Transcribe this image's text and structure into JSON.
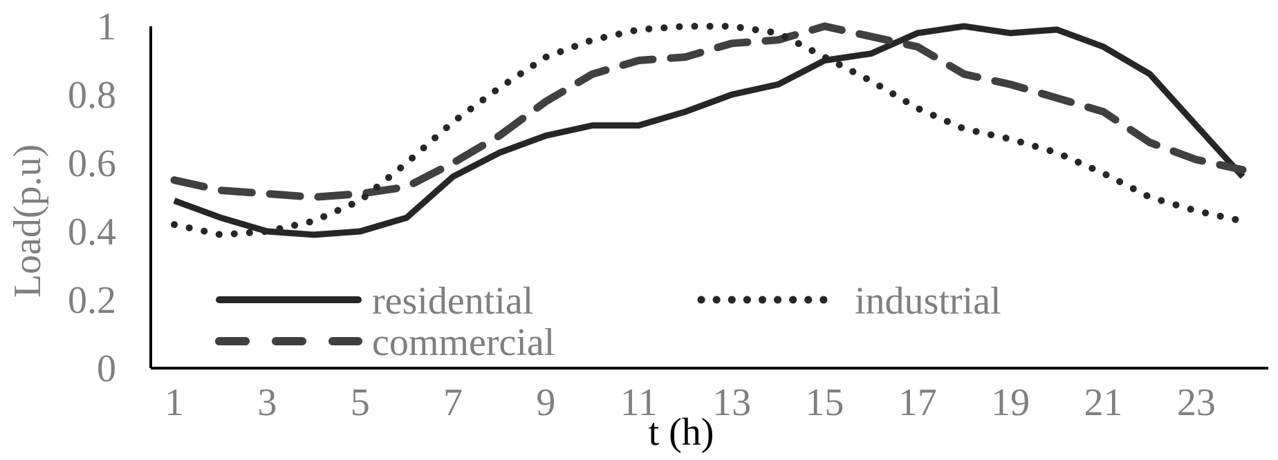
{
  "chart_data": {
    "type": "line",
    "title": "",
    "xlabel": "t (h)",
    "ylabel": "Load(p.u)",
    "x": [
      1,
      2,
      3,
      4,
      5,
      6,
      7,
      8,
      9,
      10,
      11,
      12,
      13,
      14,
      15,
      16,
      17,
      18,
      19,
      20,
      21,
      22,
      23,
      24
    ],
    "x_tick_labels": [
      "1",
      "3",
      "5",
      "7",
      "9",
      "11",
      "13",
      "15",
      "17",
      "19",
      "21",
      "23"
    ],
    "y_tick_labels": [
      "0",
      "0.2",
      "0.4",
      "0.6",
      "0.8",
      "1"
    ],
    "ylim": [
      0,
      1
    ],
    "grid": false,
    "legend_position": "bottom-left",
    "series": [
      {
        "name": "residential",
        "style": "solid",
        "color": "#262626",
        "values": [
          0.49,
          0.44,
          0.4,
          0.39,
          0.4,
          0.44,
          0.56,
          0.63,
          0.68,
          0.71,
          0.71,
          0.75,
          0.8,
          0.83,
          0.9,
          0.92,
          0.98,
          1.0,
          0.98,
          0.99,
          0.94,
          0.86,
          0.71,
          0.56
        ]
      },
      {
        "name": "commercial",
        "style": "dashed",
        "color": "#404040",
        "values": [
          0.55,
          0.52,
          0.51,
          0.5,
          0.51,
          0.53,
          0.6,
          0.68,
          0.78,
          0.86,
          0.9,
          0.91,
          0.95,
          0.96,
          1.0,
          0.97,
          0.94,
          0.86,
          0.83,
          0.79,
          0.75,
          0.66,
          0.61,
          0.58
        ]
      },
      {
        "name": "industrial",
        "style": "dotted",
        "color": "#262626",
        "values": [
          0.42,
          0.39,
          0.4,
          0.43,
          0.49,
          0.6,
          0.72,
          0.82,
          0.91,
          0.96,
          0.99,
          1.0,
          1.0,
          0.98,
          0.91,
          0.84,
          0.76,
          0.7,
          0.67,
          0.63,
          0.57,
          0.5,
          0.46,
          0.43
        ]
      }
    ]
  }
}
